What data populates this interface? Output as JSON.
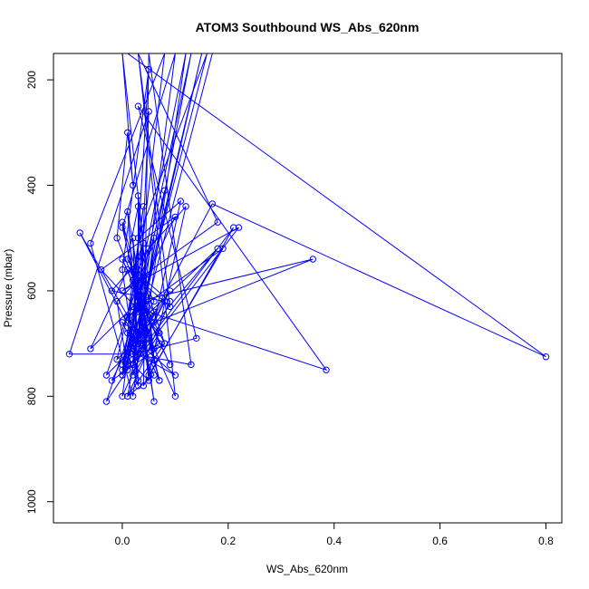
{
  "chart_data": {
    "type": "line",
    "title": "ATOM3 Southbound WS_Abs_620nm",
    "xlabel": "WS_Abs_620nm",
    "ylabel": "Pressure (mbar)",
    "xlim": [
      -0.13,
      0.83
    ],
    "ylim": [
      1040,
      150
    ],
    "y_reversed": true,
    "x_ticks": [
      0.0,
      0.2,
      0.4,
      0.6,
      0.8
    ],
    "x_tick_labels": [
      "0.0",
      "0.2",
      "0.4",
      "0.6",
      "0.8"
    ],
    "y_ticks": [
      200,
      400,
      600,
      800,
      1000
    ],
    "y_tick_labels": [
      "200",
      "400",
      "600",
      "800",
      "1000"
    ],
    "grid": false,
    "legend": "none",
    "marker": "open-circle",
    "color": "#0000ff",
    "series": [
      {
        "x": [
          0.0,
          0.02,
          0.01,
          -0.01,
          0.03,
          0.02,
          0.0,
          0.04,
          0.01,
          0.02,
          0.03,
          0.0,
          0.05,
          0.02,
          0.07,
          0.0,
          0.1,
          0.04,
          0.15,
          0.02,
          -0.1,
          0.05,
          0.03,
          -0.03,
          0.06,
          0.02,
          -0.06,
          0.08,
          0.01,
          0.09,
          0.0,
          0.12,
          0.04,
          -0.08,
          0.06,
          0.01,
          0.08,
          0.0,
          0.13,
          0.02,
          0.17
        ],
        "y": [
          150,
          400,
          300,
          500,
          600,
          700,
          760,
          440,
          650,
          720,
          770,
          560,
          180,
          660,
          770,
          480,
          150,
          620,
          150,
          720,
          720,
          260,
          700,
          760,
          500,
          800,
          510,
          150,
          750,
          600,
          740,
          150,
          700,
          490,
          760,
          800,
          410,
          750,
          150,
          730,
          150
        ]
      },
      {
        "x": [
          0.01,
          0.8,
          0.17,
          0.03,
          0.18,
          0.01,
          0.36,
          0.03,
          0.0,
          0.21,
          0.04,
          0.05,
          0.13,
          0.02,
          0.14,
          0.03,
          0.385,
          0.02,
          -0.06,
          0.01,
          0.09,
          0.03,
          0.18,
          0.0,
          0.22,
          0.02,
          0.08,
          -0.02,
          0.12,
          0.05,
          0.19,
          0.01,
          0.1,
          -0.04,
          0.07,
          0.02,
          0.04,
          0.06,
          0.11,
          0.03,
          0.16,
          0.02
        ],
        "y": [
          150,
          725,
          435,
          700,
          520,
          680,
          540,
          620,
          760,
          480,
          780,
          150,
          740,
          720,
          690,
          250,
          750,
          630,
          710,
          560,
          630,
          150,
          470,
          600,
          480,
          740,
          620,
          600,
          440,
          760,
          520,
          650,
          460,
          560,
          680,
          760,
          700,
          660,
          430,
          500,
          150,
          700
        ]
      },
      {
        "x": [
          0.03,
          0.1,
          0.03,
          0.03,
          0.06,
          0.04,
          0.08,
          0.01,
          0.09,
          0.02,
          0.01,
          0.03,
          0.05,
          0.03,
          0.05,
          0.02,
          0.03,
          0.0,
          0.03,
          0.04,
          0.02,
          0.04,
          -0.03,
          0.01,
          -0.01,
          0.03,
          0.0,
          0.04,
          0.02,
          0.03,
          0.01,
          0.06,
          0.02,
          0.05,
          0.01,
          0.03
        ],
        "y": [
          150,
          800,
          640,
          420,
          730,
          580,
          700,
          800,
          620,
          560,
          540,
          440,
          770,
          600,
          770,
          740,
          680,
          660,
          720,
          510,
          580,
          600,
          810,
          750,
          620,
          580,
          800,
          710,
          500,
          780,
          720,
          640,
          580,
          690,
          450,
          700
        ]
      },
      {
        "x": [
          0.0,
          0.04,
          0.02,
          0.06,
          0.03,
          0.07,
          0.01,
          0.05,
          0.02,
          0.08,
          -0.02,
          0.02,
          0.1,
          0.01,
          0.06,
          0.03,
          -0.01,
          0.04,
          0.0,
          0.05,
          0.03,
          0.07,
          0.02,
          0.09,
          0.0,
          0.03,
          0.06,
          0.01,
          0.04,
          0.02
        ],
        "y": [
          150,
          510,
          560,
          810,
          600,
          700,
          740,
          520,
          580,
          700,
          770,
          690,
          760,
          710,
          620,
          560,
          730,
          680,
          470,
          650,
          600,
          770,
          590,
          740,
          540,
          610,
          710,
          650,
          620,
          690
        ]
      }
    ]
  }
}
